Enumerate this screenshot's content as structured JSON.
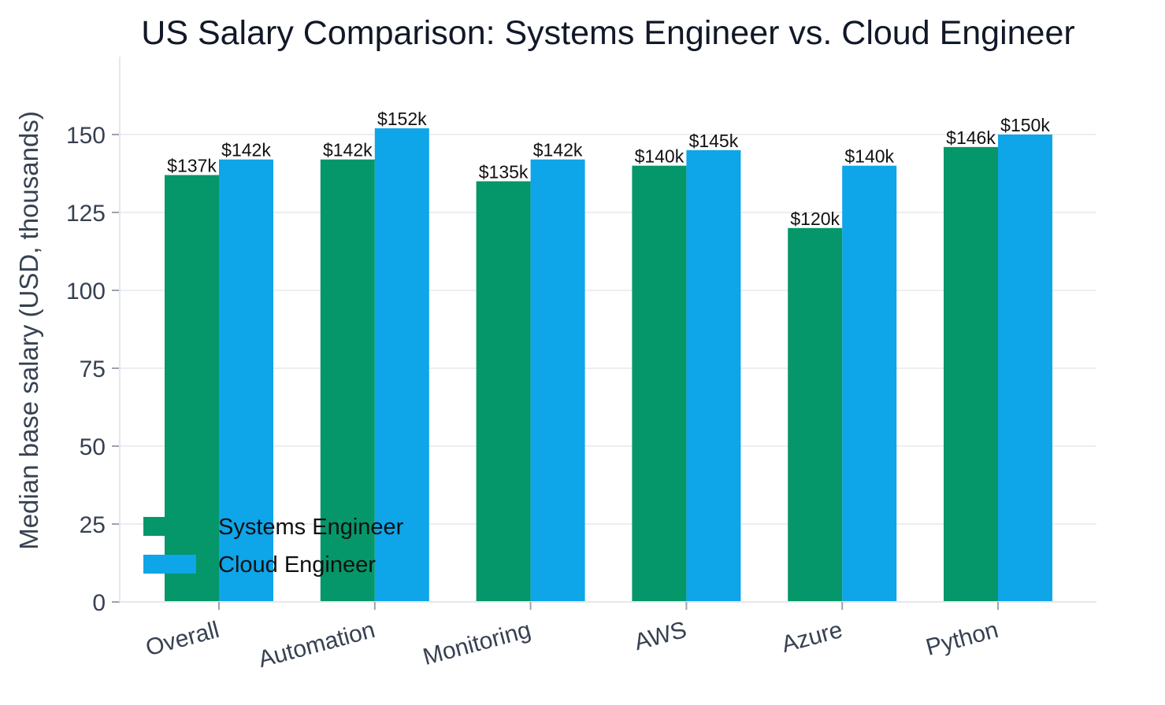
{
  "chart_data": {
    "type": "bar",
    "title": "US Salary Comparison: Systems Engineer vs. Cloud Engineer",
    "xlabel": "",
    "ylabel": "Median base salary (USD, thousands)",
    "categories": [
      "Overall",
      "Automation",
      "Monitoring",
      "AWS",
      "Azure",
      "Python"
    ],
    "series": [
      {
        "name": "Systems Engineer",
        "color": "#059669",
        "values": [
          137,
          142,
          135,
          140,
          120,
          146
        ],
        "labels": [
          "$137k",
          "$142k",
          "$135k",
          "$140k",
          "$120k",
          "$146k"
        ]
      },
      {
        "name": "Cloud Engineer",
        "color": "#0ea5e9",
        "values": [
          142,
          152,
          142,
          145,
          140,
          150
        ],
        "labels": [
          "$142k",
          "$152k",
          "$142k",
          "$145k",
          "$140k",
          "$150k"
        ]
      }
    ],
    "ylim": [
      0,
      175
    ],
    "yticks": [
      0,
      25,
      50,
      75,
      100,
      125,
      150
    ],
    "grid": "horizontal",
    "legend_position": "lower-left"
  }
}
